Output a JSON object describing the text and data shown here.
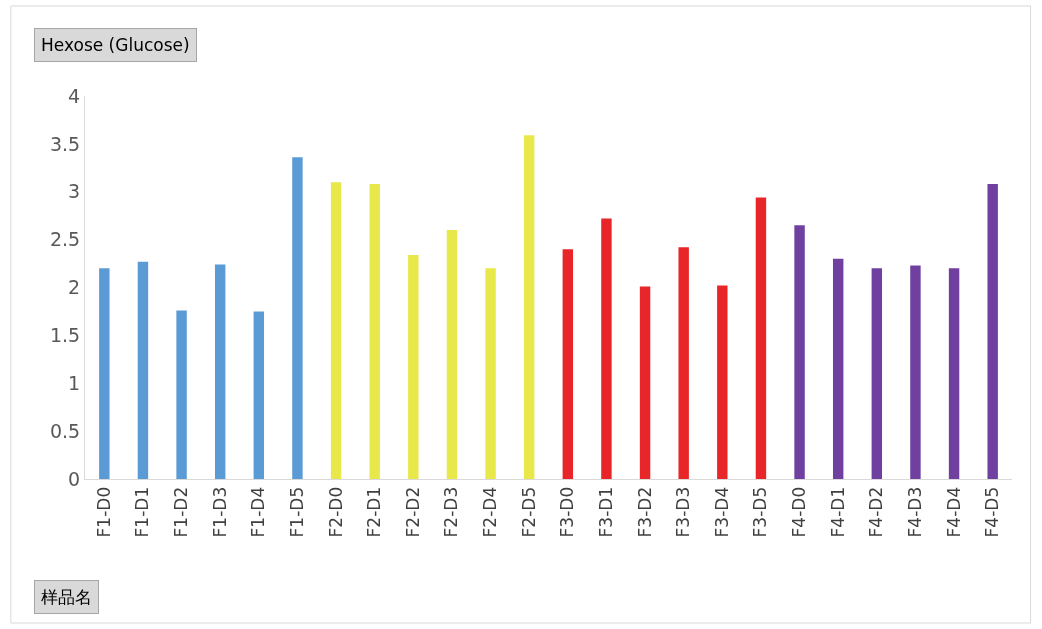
{
  "chart_data": {
    "type": "bar",
    "title": "Hexose (Glucose)",
    "xlabel": "样品名",
    "categories": [
      "F1-D0",
      "F1-D1",
      "F1-D2",
      "F1-D3",
      "F1-D4",
      "F1-D5",
      "F2-D0",
      "F2-D1",
      "F2-D2",
      "F2-D3",
      "F2-D4",
      "F2-D5",
      "F3-D0",
      "F3-D1",
      "F3-D2",
      "F3-D3",
      "F3-D4",
      "F3-D5",
      "F4-D0",
      "F4-D1",
      "F4-D2",
      "F4-D3",
      "F4-D4",
      "F4-D5"
    ],
    "values": [
      2.2,
      2.27,
      1.76,
      2.24,
      1.75,
      3.36,
      3.1,
      3.08,
      2.34,
      2.6,
      2.2,
      3.59,
      2.4,
      2.72,
      2.01,
      2.42,
      2.02,
      2.94,
      2.65,
      2.3,
      2.2,
      2.23,
      2.2,
      3.08
    ],
    "colors": [
      "#5b9bd5",
      "#5b9bd5",
      "#5b9bd5",
      "#5b9bd5",
      "#5b9bd5",
      "#5b9bd5",
      "#e8e84a",
      "#e8e84a",
      "#e8e84a",
      "#e8e84a",
      "#e8e84a",
      "#e8e84a",
      "#e8262a",
      "#e8262a",
      "#e8262a",
      "#e8262a",
      "#e8262a",
      "#e8262a",
      "#7040a0",
      "#7040a0",
      "#7040a0",
      "#7040a0",
      "#7040a0",
      "#7040a0"
    ],
    "ylim": [
      0,
      4
    ],
    "yticks": [
      0,
      0.5,
      1,
      1.5,
      2,
      2.5,
      3,
      3.5,
      4
    ],
    "grid": false
  }
}
